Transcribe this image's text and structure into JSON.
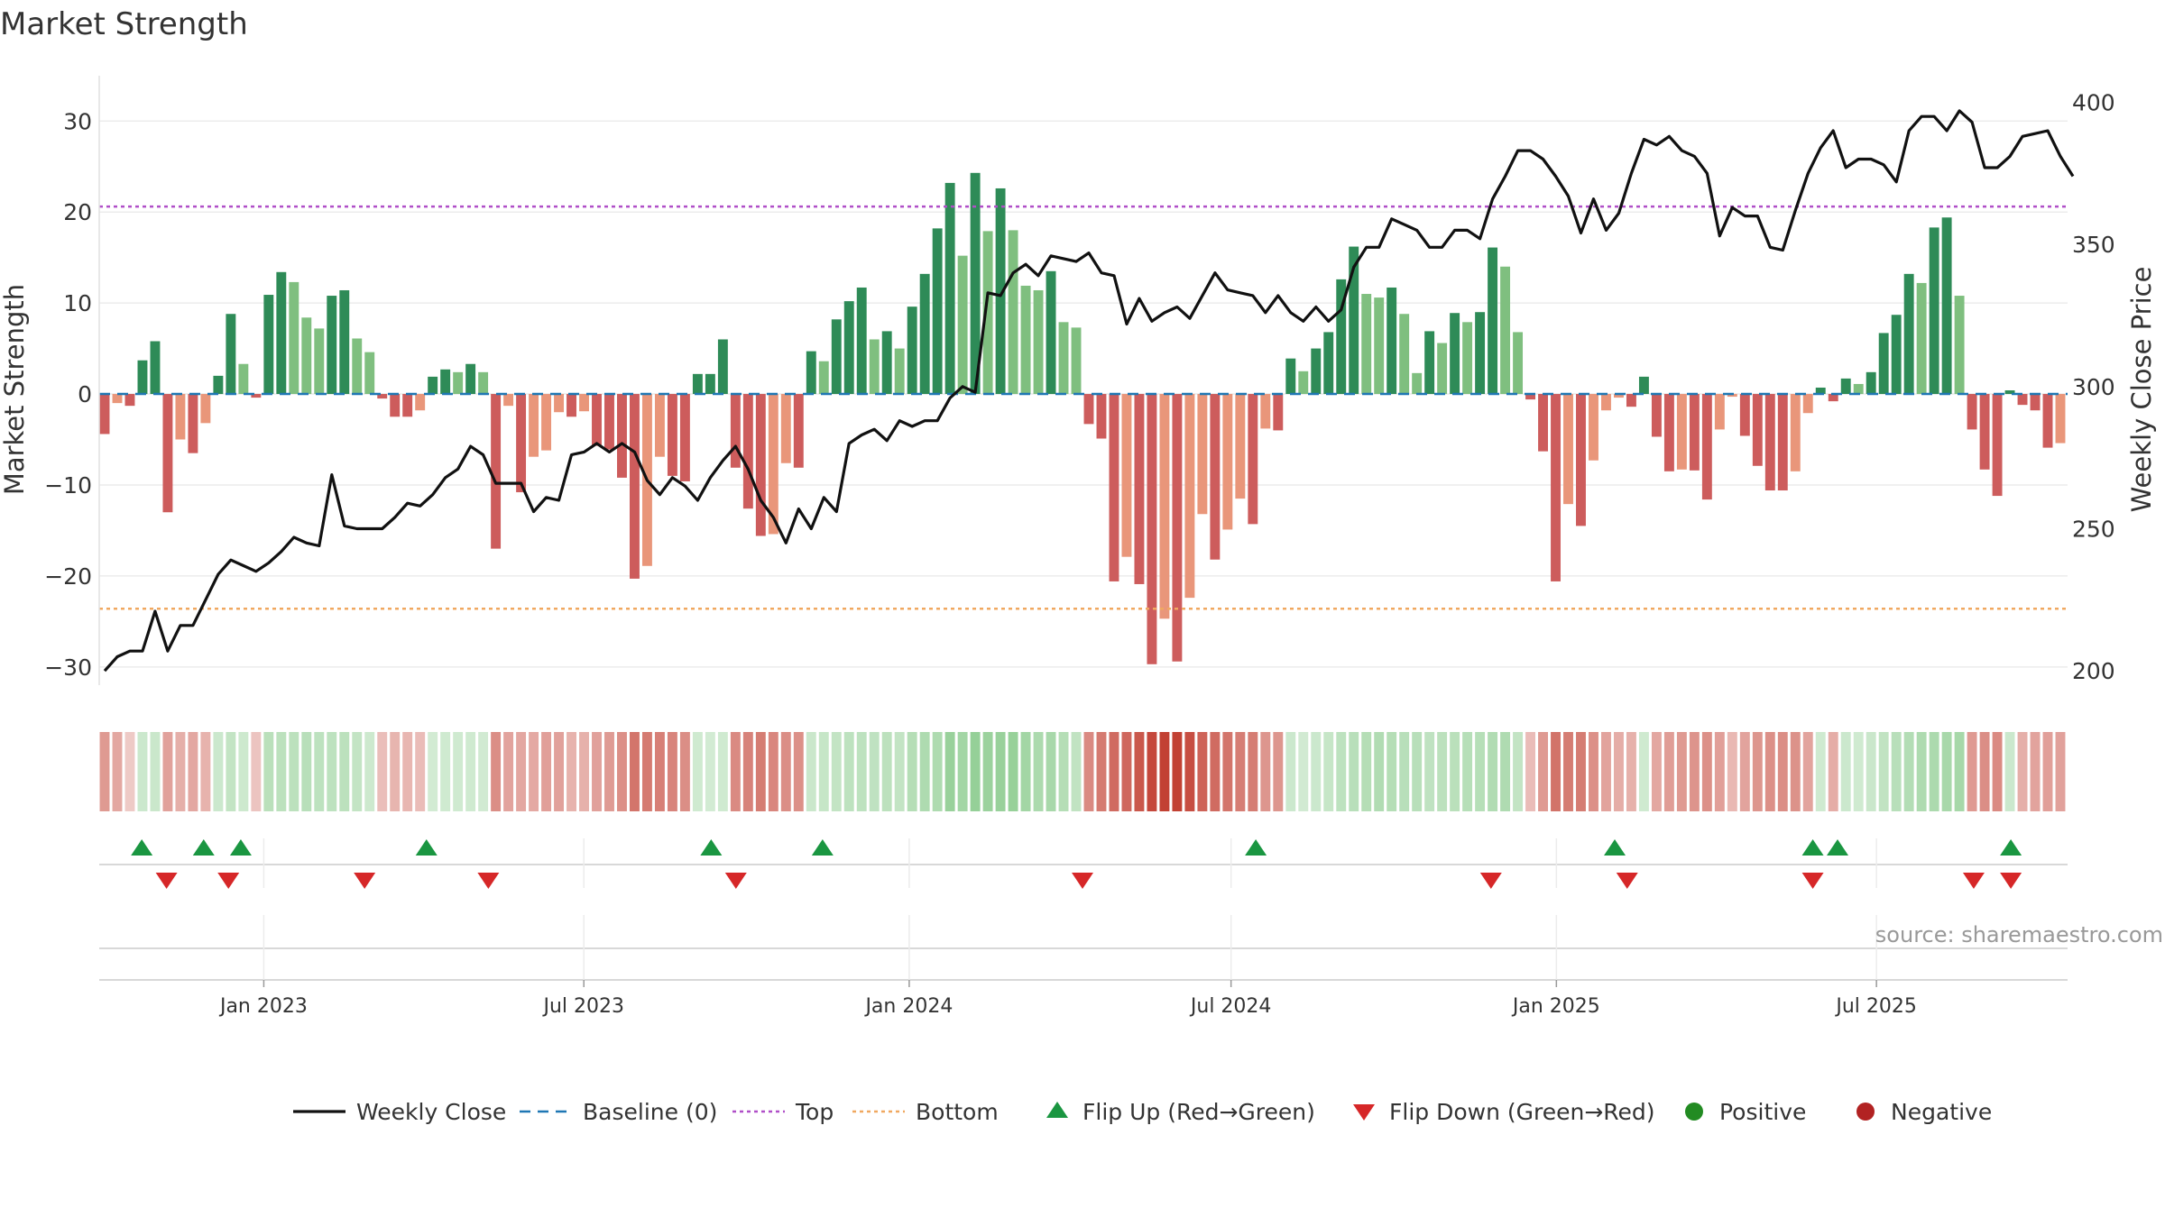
{
  "chart_data": {
    "type": "bar",
    "title": "Market Strength",
    "ylabel": "Market Strength",
    "y2label": "Weekly Close Price",
    "ylim": [
      -32,
      33
    ],
    "y2lim": [
      195,
      403
    ],
    "yticks": [
      30,
      20,
      10,
      0,
      -10,
      -20,
      -30
    ],
    "ytick_labels": [
      "30",
      "20",
      "10",
      "0",
      "−10",
      "−20",
      "−30"
    ],
    "y2ticks": [
      400,
      350,
      300,
      250,
      200
    ],
    "y2tick_labels": [
      "400",
      "350",
      "300",
      "250",
      "200"
    ],
    "top_line": 20.6,
    "bottom_line": -23.6,
    "start_date": "2022-10-03",
    "end_date": "2025-10-13",
    "xticks": [
      {
        "label": "Jan 2023",
        "date": "2023-01-01"
      },
      {
        "label": "Jul 2023",
        "date": "2023-07-01"
      },
      {
        "label": "Jan 2024",
        "date": "2024-01-01"
      },
      {
        "label": "Jul 2024",
        "date": "2024-07-01"
      },
      {
        "label": "Jan 2025",
        "date": "2025-01-01"
      },
      {
        "label": "Jul 2025",
        "date": "2025-07-01"
      }
    ],
    "strength": [
      -4.4,
      -1.0,
      -1.3,
      3.7,
      5.8,
      -13.0,
      -5.0,
      -6.5,
      -3.2,
      2.0,
      8.8,
      3.3,
      -0.4,
      10.9,
      13.4,
      12.3,
      8.4,
      7.2,
      10.8,
      11.4,
      6.1,
      4.6,
      -0.5,
      -2.5,
      -2.5,
      -1.8,
      1.9,
      2.7,
      2.4,
      3.3,
      2.4,
      -17.0,
      -1.3,
      -10.8,
      -6.9,
      -6.2,
      -2.0,
      -2.5,
      -1.9,
      -5.7,
      -6.1,
      -9.2,
      -20.3,
      -18.9,
      -6.9,
      -9.0,
      -9.6,
      2.2,
      2.2,
      6.0,
      -8.1,
      -12.6,
      -15.6,
      -15.4,
      -7.6,
      -8.1,
      4.7,
      3.6,
      8.2,
      10.2,
      11.7,
      6.0,
      6.9,
      5.0,
      9.6,
      13.2,
      18.2,
      23.2,
      15.2,
      24.3,
      17.9,
      22.6,
      18.0,
      11.9,
      11.4,
      13.5,
      7.9,
      7.3,
      -3.3,
      -4.9,
      -20.6,
      -17.9,
      -20.9,
      -29.7,
      -24.7,
      -29.4,
      -22.4,
      -13.2,
      -18.2,
      -14.9,
      -11.5,
      -14.3,
      -3.8,
      -4.0,
      3.9,
      2.5,
      5.0,
      6.8,
      12.6,
      16.2,
      11.0,
      10.6,
      11.7,
      8.8,
      2.3,
      6.9,
      5.6,
      8.9,
      7.9,
      9.0,
      16.1,
      14.0,
      6.8,
      -0.6,
      -6.3,
      -20.6,
      -12.1,
      -14.5,
      -7.3,
      -1.8,
      -0.4,
      -1.4,
      1.9,
      -4.7,
      -8.5,
      -8.3,
      -8.4,
      -11.6,
      -3.9,
      -0.3,
      -4.6,
      -7.9,
      -10.6,
      -10.6,
      -8.5,
      -2.1,
      0.7,
      -0.8,
      1.7,
      1.1,
      2.4,
      6.7,
      8.7,
      13.2,
      12.2,
      18.3,
      19.4,
      10.8,
      -3.9,
      -8.3,
      -11.2,
      0.4,
      -1.2,
      -1.8,
      -5.9,
      -5.4
    ],
    "weekly_close": [
      200,
      205,
      207,
      207,
      221,
      207,
      216,
      216,
      225,
      234,
      239,
      237,
      235,
      238,
      242,
      247,
      245,
      244,
      269,
      251,
      250,
      250,
      250,
      254,
      259,
      258,
      262,
      268,
      271,
      279,
      276,
      266,
      266,
      266,
      256,
      261,
      260,
      276,
      277,
      280,
      277,
      280,
      277,
      267,
      262,
      268,
      265,
      260,
      268,
      274,
      279,
      271,
      260,
      254,
      245,
      257,
      250,
      261,
      256,
      280,
      283,
      285,
      281,
      288,
      286,
      288,
      288,
      296,
      300,
      298,
      333,
      332,
      340,
      343,
      339,
      346,
      345,
      344,
      347,
      340,
      339,
      322,
      331,
      323,
      326,
      328,
      324,
      332,
      340,
      334,
      333,
      332,
      326,
      332,
      326,
      323,
      328,
      323,
      327,
      342,
      349,
      349,
      359,
      357,
      355,
      349,
      349,
      355,
      355,
      352,
      366,
      374,
      383,
      383,
      380,
      374,
      367,
      354,
      366,
      355,
      361,
      375,
      387,
      385,
      388,
      383,
      381,
      375,
      353,
      363,
      360,
      360,
      349,
      348,
      362,
      375,
      384,
      390,
      377,
      380,
      380,
      378,
      372,
      390,
      395,
      395,
      390,
      397,
      393,
      377,
      377,
      381,
      388,
      389,
      390,
      381,
      374
    ],
    "heat": [
      -3.0,
      -2.3,
      -0.5,
      0.7,
      0.8,
      -2.6,
      -1.9,
      -2.3,
      -1.7,
      0.7,
      1.2,
      0.6,
      -0.8,
      1.7,
      1.6,
      1.6,
      1.8,
      1.5,
      1.5,
      1.6,
      1.2,
      0.6,
      -1.1,
      -1.6,
      -1.5,
      -1.2,
      0.3,
      0.5,
      0.5,
      0.5,
      0.4,
      -3.6,
      -2.5,
      -2.3,
      -2.2,
      -2.7,
      -2.6,
      -1.7,
      -1.8,
      -2.6,
      -2.9,
      -3.5,
      -4.9,
      -4.6,
      -4.3,
      -4.1,
      -3.6,
      0.5,
      0.3,
      0.5,
      -3.8,
      -4.2,
      -4.5,
      -4.0,
      -3.6,
      -3.5,
      0.8,
      1.0,
      1.2,
      1.5,
      1.5,
      1.4,
      1.6,
      1.2,
      2.0,
      2.4,
      2.4,
      3.6,
      3.0,
      3.8,
      3.5,
      3.6,
      3.7,
      3.0,
      2.5,
      2.7,
      2.0,
      1.3,
      -3.8,
      -4.6,
      -5.4,
      -5.6,
      -6.4,
      -7.2,
      -7.6,
      -7.6,
      -6.9,
      -5.8,
      -5.4,
      -4.9,
      -4.4,
      -4.5,
      -3.2,
      -3.2,
      0.7,
      0.4,
      0.7,
      1.0,
      1.5,
      1.8,
      2.0,
      2.2,
      2.0,
      1.8,
      1.8,
      1.4,
      1.6,
      1.7,
      1.9,
      1.9,
      2.2,
      2.3,
      1.2,
      -1.2,
      -3.0,
      -5.0,
      -4.5,
      -4.5,
      -3.5,
      -2.5,
      -2.0,
      -1.8,
      0.5,
      -2.3,
      -2.8,
      -3.0,
      -3.3,
      -3.5,
      -2.7,
      -1.4,
      -2.5,
      -3.2,
      -3.5,
      -3.6,
      -3.4,
      -2.5,
      0.5,
      -2.0,
      0.7,
      0.5,
      0.8,
      1.3,
      1.8,
      2.1,
      2.4,
      2.5,
      2.7,
      2.8,
      -3.0,
      -3.6,
      -3.8,
      0.7,
      -1.9,
      -2.5,
      -2.7,
      -2.6
    ],
    "flip_up_dates": [
      "2022-10-24",
      "2022-11-28",
      "2022-12-19",
      "2023-04-03",
      "2023-09-11",
      "2023-11-13",
      "2024-07-15",
      "2025-02-03",
      "2025-05-26",
      "2025-06-09",
      "2025-09-15"
    ],
    "flip_down_dates": [
      "2022-11-07",
      "2022-12-12",
      "2023-02-27",
      "2023-05-08",
      "2023-09-25",
      "2024-04-08",
      "2024-11-25",
      "2025-02-10",
      "2025-05-26",
      "2025-08-25",
      "2025-09-15"
    ],
    "legend": [
      "Weekly Close",
      "Baseline (0)",
      "Top",
      "Bottom",
      "Flip Up (Red→Green)",
      "Flip Down (Green→Red)",
      "Positive",
      "Negative"
    ],
    "legend_position": "bottom-center",
    "grid": true
  },
  "source_text": "source: sharemaestro.com",
  "colors": {
    "pos_strong": "#2e8b57",
    "pos_weak": "#7fbf7f",
    "neg_strong": "#cd5c5c",
    "neg_weak": "#e9967a",
    "close_line": "#111111",
    "baseline": "#1f77b4",
    "top": "#b04fc8",
    "bottom": "#f0a860",
    "flip_up": "#1a9641",
    "flip_down": "#d62728",
    "positive_dot": "#228b22",
    "negative_dot": "#b22222"
  }
}
